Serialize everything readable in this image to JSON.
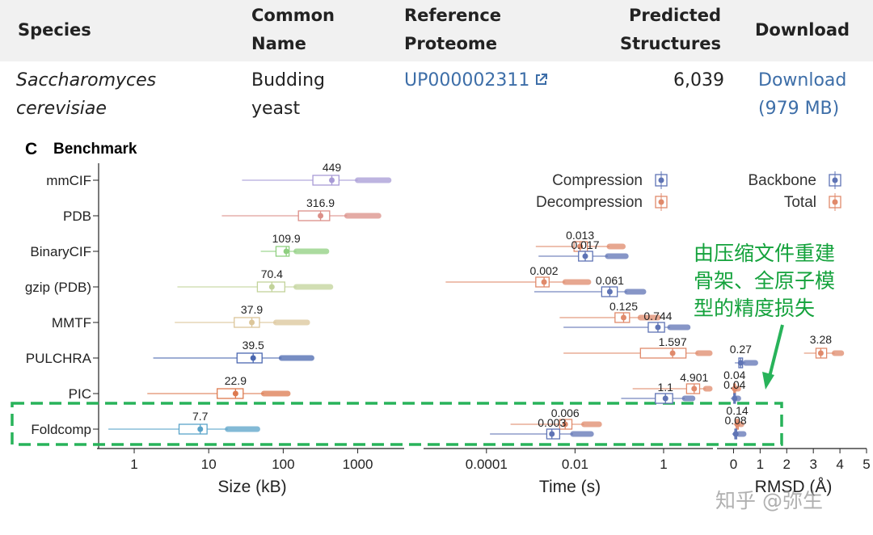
{
  "table": {
    "headers": [
      {
        "line1": "Species",
        "line2": ""
      },
      {
        "line1": "Common",
        "line2": "Name"
      },
      {
        "line1": "Reference",
        "line2": "Proteome"
      },
      {
        "line1": "Predicted",
        "line2": "Structures"
      },
      {
        "line1": "Download",
        "line2": ""
      }
    ],
    "row": {
      "species_line1": "Saccharomyces",
      "species_line2": "cerevisiae",
      "common_line1": "Budding",
      "common_line2": "yeast",
      "proteome": "UP000002311",
      "structures": "6,039",
      "download_line1": "Download",
      "download_line2": "(979 MB)"
    }
  },
  "figure": {
    "panel_letter": "C",
    "title": "Benchmark"
  },
  "annotation": {
    "lines": [
      "由压缩文件重建",
      "骨架、全原子模",
      "型的精度损失"
    ]
  },
  "watermark": "知乎 @弥生",
  "colors": {
    "mmCIF": "#a89bd6",
    "PDB": "#dc8f88",
    "BinaryCIF": "#8fcf80",
    "gzip": "#c2d39a",
    "MMTF": "#dcc69a",
    "PULCHRA": "#4a67b0",
    "PIC": "#dd7a4f",
    "Foldcomp": "#5aa3c9",
    "compression": "#5f74b5",
    "decompression": "#e08a6b",
    "highlight": "#28b35a"
  },
  "chart_data": [
    {
      "type": "boxplot",
      "xlabel": "Size (kB)",
      "xscale": "log",
      "xlim": [
        0.35,
        4200
      ],
      "xticks": [
        1,
        10,
        100,
        1000
      ],
      "xtick_labels": [
        "1",
        "10",
        "100",
        "1000"
      ],
      "categories": [
        "mmCIF",
        "PDB",
        "BinaryCIF",
        "gzip (PDB)",
        "MMTF",
        "PULCHRA",
        "PIC",
        "Foldcomp"
      ],
      "series": [
        {
          "name": "mmCIF",
          "median": 449,
          "label": "449",
          "whisker_low": 28,
          "q1": 250,
          "q3": 560,
          "whisker_high": 1000,
          "outlier_high": 2600
        },
        {
          "name": "PDB",
          "median": 316.9,
          "label": "316.9",
          "whisker_low": 15,
          "q1": 160,
          "q3": 420,
          "whisker_high": 720,
          "outlier_high": 1900
        },
        {
          "name": "BinaryCIF",
          "median": 109.9,
          "label": "109.9",
          "whisker_low": 50,
          "q1": 80,
          "q3": 120,
          "whisker_high": 150,
          "outlier_high": 380
        },
        {
          "name": "gzip (PDB)",
          "median": 70.4,
          "label": "70.4",
          "whisker_low": 3.8,
          "q1": 45,
          "q3": 105,
          "whisker_high": 150,
          "outlier_high": 430
        },
        {
          "name": "MMTF",
          "median": 37.9,
          "label": "37.9",
          "whisker_low": 3.5,
          "q1": 22,
          "q3": 48,
          "whisker_high": 80,
          "outlier_high": 210
        },
        {
          "name": "PULCHRA",
          "median": 39.5,
          "label": "39.5",
          "whisker_low": 1.8,
          "q1": 24,
          "q3": 52,
          "whisker_high": 95,
          "outlier_high": 240
        },
        {
          "name": "PIC",
          "median": 22.9,
          "label": "22.9",
          "whisker_low": 1.5,
          "q1": 13,
          "q3": 29,
          "whisker_high": 55,
          "outlier_high": 115
        },
        {
          "name": "Foldcomp",
          "median": 7.7,
          "label": "7.7",
          "whisker_low": 0.45,
          "q1": 4,
          "q3": 9.5,
          "whisker_high": 18,
          "outlier_high": 45
        }
      ]
    },
    {
      "type": "boxplot",
      "xlabel": "Time (s)",
      "xscale": "log",
      "xlim": [
        4.5e-06,
        13
      ],
      "xticks": [
        0.0001,
        0.01,
        1
      ],
      "xtick_labels": [
        "0.0001",
        "0.01",
        "1"
      ],
      "legend": [
        "Compression",
        "Decompression"
      ],
      "categories": [
        "BinaryCIF",
        "gzip (PDB)",
        "MMTF",
        "PULCHRA",
        "PIC",
        "Foldcomp"
      ],
      "series": [
        {
          "tool": "BinaryCIF",
          "kind": "Decompression",
          "median": 0.013,
          "label": "0.013",
          "whisker_low": 0.0013,
          "q1": 0.0095,
          "q3": 0.019,
          "whisker_high": 0.06,
          "outlier_high": 0.12
        },
        {
          "tool": "BinaryCIF",
          "kind": "Compression",
          "median": 0.017,
          "label": "0.017",
          "whisker_low": 0.0015,
          "q1": 0.012,
          "q3": 0.025,
          "whisker_high": 0.055,
          "outlier_high": 0.14
        },
        {
          "tool": "gzip (PDB)",
          "kind": "Decompression",
          "median": 0.002,
          "label": "0.002",
          "whisker_low": 1.2e-05,
          "q1": 0.0013,
          "q3": 0.0026,
          "whisker_high": 0.006,
          "outlier_high": 0.02
        },
        {
          "tool": "gzip (PDB)",
          "kind": "Compression",
          "median": 0.061,
          "label": "0.061",
          "whisker_low": 0.0012,
          "q1": 0.04,
          "q3": 0.09,
          "whisker_high": 0.15,
          "outlier_high": 0.35
        },
        {
          "tool": "MMTF",
          "kind": "Decompression",
          "median": 0.125,
          "label": "0.125",
          "whisker_low": 0.0045,
          "q1": 0.08,
          "q3": 0.17,
          "whisker_high": 0.3,
          "outlier_high": 0.75
        },
        {
          "tool": "MMTF",
          "kind": "Compression",
          "median": 0.744,
          "label": "0.744",
          "whisker_low": 0.0055,
          "q1": 0.45,
          "q3": 1.05,
          "whisker_high": 1.4,
          "outlier_high": 3.5
        },
        {
          "tool": "PULCHRA",
          "kind": "Decompression",
          "median": 1.597,
          "label": "1.597",
          "whisker_low": 0.0055,
          "q1": 0.3,
          "q3": 3.2,
          "whisker_high": 6,
          "outlier_high": 11
        },
        {
          "tool": "PIC",
          "kind": "Decompression",
          "median": 4.901,
          "label": "4.901",
          "whisker_low": 0.2,
          "q1": 3.3,
          "q3": 6.5,
          "whisker_high": 9,
          "outlier_high": 11
        },
        {
          "tool": "PIC",
          "kind": "Compression",
          "median": 1.1,
          "label": "1.1",
          "whisker_low": 0.11,
          "q1": 0.65,
          "q3": 1.6,
          "whisker_high": 3,
          "outlier_high": 4.5
        },
        {
          "tool": "Foldcomp",
          "kind": "Decompression",
          "median": 0.006,
          "label": "0.006",
          "whisker_low": 0.00035,
          "q1": 0.0045,
          "q3": 0.0085,
          "whisker_high": 0.016,
          "outlier_high": 0.035
        },
        {
          "tool": "Foldcomp",
          "kind": "Compression",
          "median": 0.003,
          "label": "0.003",
          "whisker_low": 0.00012,
          "q1": 0.0023,
          "q3": 0.0045,
          "whisker_high": 0.009,
          "outlier_high": 0.023
        }
      ]
    },
    {
      "type": "boxplot",
      "xlabel": "RMSD (Å)",
      "xscale": "linear",
      "xlim": [
        -0.5,
        5
      ],
      "xticks": [
        0,
        1,
        2,
        3,
        4,
        5
      ],
      "xtick_labels": [
        "0",
        "1",
        "2",
        "3",
        "4",
        "5"
      ],
      "legend": [
        "Backbone",
        "Total"
      ],
      "categories": [
        "PULCHRA",
        "PIC",
        "Foldcomp"
      ],
      "series": [
        {
          "tool": "PULCHRA",
          "kind": "Total",
          "median": 3.28,
          "label": "3.28",
          "whisker_low": 2.65,
          "q1": 3.1,
          "q3": 3.5,
          "whisker_high": 3.8,
          "outlier_high": 4.05
        },
        {
          "tool": "PULCHRA",
          "kind": "Backbone",
          "median": 0.27,
          "label": "0.27",
          "whisker_low": 0.05,
          "q1": 0.2,
          "q3": 0.34,
          "whisker_high": 0.45,
          "outlier_high": 0.82
        },
        {
          "tool": "PIC",
          "kind": "Total",
          "median": 0.04,
          "label": "0.04",
          "whisker_low": -0.1,
          "q1": 0.01,
          "q3": 0.07,
          "whisker_high": 0.12,
          "outlier_high": 0.18
        },
        {
          "tool": "PIC",
          "kind": "Backbone",
          "median": 0.04,
          "label": "0.04",
          "whisker_low": -0.1,
          "q1": 0.01,
          "q3": 0.07,
          "whisker_high": 0.12,
          "outlier_high": 0.18
        },
        {
          "tool": "Foldcomp",
          "kind": "Total",
          "median": 0.14,
          "label": "0.14",
          "whisker_low": 0,
          "q1": 0.1,
          "q3": 0.18,
          "whisker_high": 0.25,
          "outlier_high": 0.3
        },
        {
          "tool": "Foldcomp",
          "kind": "Backbone",
          "median": 0.08,
          "label": "0.08",
          "whisker_low": -0.05,
          "q1": 0.05,
          "q3": 0.12,
          "whisker_high": 0.2,
          "outlier_high": 0.38
        }
      ]
    }
  ]
}
